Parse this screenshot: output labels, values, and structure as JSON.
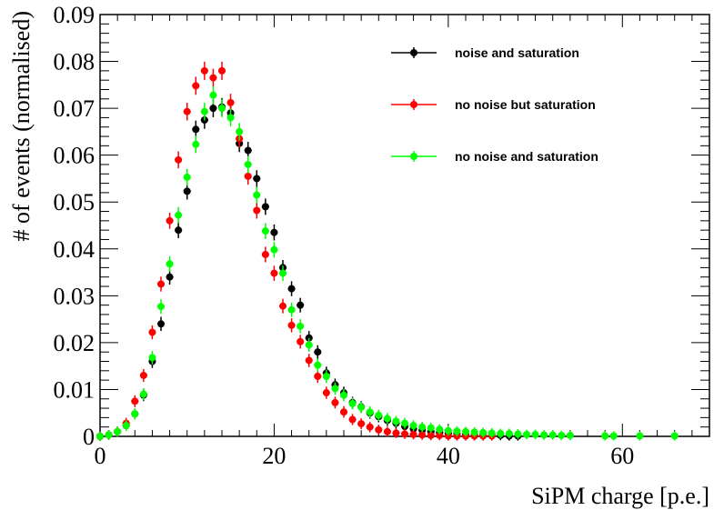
{
  "chart_data": {
    "type": "scatter",
    "xlabel": "SiPM charge [p.e.]",
    "ylabel": "# of events (normalised)",
    "xlim": [
      0,
      70
    ],
    "ylim": [
      0,
      0.09
    ],
    "x_ticks": [
      0,
      20,
      40,
      60
    ],
    "x_tick_labels": [
      "0",
      "20",
      "40",
      "60"
    ],
    "y_ticks": [
      0,
      0.01,
      0.02,
      0.03,
      0.04,
      0.05,
      0.06,
      0.07,
      0.08,
      0.09
    ],
    "y_tick_labels": [
      "0",
      "0.01",
      "0.02",
      "0.03",
      "0.04",
      "0.05",
      "0.06",
      "0.07",
      "0.08",
      "0.09"
    ],
    "grid": false,
    "legend_position": "top-right",
    "series": [
      {
        "name": "noise and saturation",
        "color": "#000000",
        "points": [
          [
            0,
            0.0
          ],
          [
            1,
            0.0003
          ],
          [
            2,
            0.001
          ],
          [
            3,
            0.0023
          ],
          [
            4,
            0.0048
          ],
          [
            5,
            0.0088
          ],
          [
            6,
            0.016
          ],
          [
            7,
            0.024
          ],
          [
            8,
            0.034
          ],
          [
            9,
            0.044
          ],
          [
            10,
            0.0523
          ],
          [
            11,
            0.0655
          ],
          [
            12,
            0.0675
          ],
          [
            13,
            0.07
          ],
          [
            14,
            0.0703
          ],
          [
            15,
            0.069
          ],
          [
            16,
            0.0625
          ],
          [
            17,
            0.061
          ],
          [
            18,
            0.055
          ],
          [
            19,
            0.049
          ],
          [
            20,
            0.0435
          ],
          [
            21,
            0.036
          ],
          [
            22,
            0.0315
          ],
          [
            23,
            0.028
          ],
          [
            24,
            0.021
          ],
          [
            25,
            0.018
          ],
          [
            26,
            0.0135
          ],
          [
            27,
            0.011
          ],
          [
            28,
            0.0093
          ],
          [
            29,
            0.0072
          ],
          [
            30,
            0.0063
          ],
          [
            31,
            0.005
          ],
          [
            32,
            0.0042
          ],
          [
            33,
            0.0034
          ],
          [
            34,
            0.0028
          ],
          [
            35,
            0.0021
          ],
          [
            36,
            0.0016
          ],
          [
            37,
            0.0013
          ],
          [
            38,
            0.001
          ],
          [
            39,
            0.0008
          ],
          [
            40,
            0.0006
          ],
          [
            41,
            0.0005
          ],
          [
            42,
            0.0004
          ],
          [
            43,
            0.0003
          ],
          [
            44,
            0.0003
          ],
          [
            45,
            0.0002
          ],
          [
            46,
            0.0002
          ],
          [
            47,
            0.0001
          ],
          [
            48,
            0.0001
          ]
        ]
      },
      {
        "name": "no noise but saturation",
        "color": "#ff0000",
        "points": [
          [
            0,
            0.0
          ],
          [
            1,
            0.0003
          ],
          [
            2,
            0.001
          ],
          [
            3,
            0.0028
          ],
          [
            4,
            0.0075
          ],
          [
            5,
            0.013
          ],
          [
            6,
            0.0222
          ],
          [
            7,
            0.0325
          ],
          [
            8,
            0.046
          ],
          [
            9,
            0.059
          ],
          [
            10,
            0.0693
          ],
          [
            11,
            0.0748
          ],
          [
            12,
            0.078
          ],
          [
            13,
            0.0765
          ],
          [
            14,
            0.078
          ],
          [
            15,
            0.0712
          ],
          [
            16,
            0.0635
          ],
          [
            17,
            0.0555
          ],
          [
            18,
            0.0482
          ],
          [
            19,
            0.0388
          ],
          [
            20,
            0.0348
          ],
          [
            21,
            0.0278
          ],
          [
            22,
            0.0237
          ],
          [
            23,
            0.0202
          ],
          [
            24,
            0.0162
          ],
          [
            25,
            0.0128
          ],
          [
            26,
            0.0093
          ],
          [
            27,
            0.0072
          ],
          [
            28,
            0.0052
          ],
          [
            29,
            0.0036
          ],
          [
            30,
            0.0027
          ],
          [
            31,
            0.002
          ],
          [
            32,
            0.0014
          ],
          [
            33,
            0.001
          ],
          [
            34,
            0.0007
          ],
          [
            35,
            0.0005
          ],
          [
            36,
            0.0004
          ],
          [
            37,
            0.0003
          ],
          [
            38,
            0.0002
          ],
          [
            39,
            0.0002
          ],
          [
            40,
            0.0001
          ],
          [
            41,
            0.0001
          ],
          [
            42,
            0.0001
          ],
          [
            43,
            0.0001
          ],
          [
            44,
            0.0001
          ],
          [
            45,
            0.0001
          ]
        ]
      },
      {
        "name": "no noise and saturation",
        "color": "#00ff00",
        "points": [
          [
            0,
            0.0
          ],
          [
            1,
            0.0003
          ],
          [
            2,
            0.001
          ],
          [
            3,
            0.0023
          ],
          [
            4,
            0.0048
          ],
          [
            5,
            0.009
          ],
          [
            6,
            0.0168
          ],
          [
            7,
            0.0277
          ],
          [
            8,
            0.0368
          ],
          [
            9,
            0.0472
          ],
          [
            10,
            0.0553
          ],
          [
            11,
            0.0623
          ],
          [
            12,
            0.0693
          ],
          [
            13,
            0.0728
          ],
          [
            14,
            0.07
          ],
          [
            15,
            0.068
          ],
          [
            16,
            0.065
          ],
          [
            17,
            0.058
          ],
          [
            18,
            0.0515
          ],
          [
            19,
            0.0438
          ],
          [
            20,
            0.0398
          ],
          [
            21,
            0.0348
          ],
          [
            22,
            0.027
          ],
          [
            23,
            0.0235
          ],
          [
            24,
            0.0195
          ],
          [
            25,
            0.0152
          ],
          [
            26,
            0.0128
          ],
          [
            27,
            0.0102
          ],
          [
            28,
            0.0088
          ],
          [
            29,
            0.007
          ],
          [
            30,
            0.0062
          ],
          [
            31,
            0.0052
          ],
          [
            32,
            0.0045
          ],
          [
            33,
            0.0038
          ],
          [
            34,
            0.0032
          ],
          [
            35,
            0.0028
          ],
          [
            36,
            0.0023
          ],
          [
            37,
            0.002
          ],
          [
            38,
            0.0018
          ],
          [
            39,
            0.0015
          ],
          [
            40,
            0.0012
          ],
          [
            41,
            0.0011
          ],
          [
            42,
            0.001
          ],
          [
            43,
            0.0009
          ],
          [
            44,
            0.0008
          ],
          [
            45,
            0.0007
          ],
          [
            46,
            0.0006
          ],
          [
            47,
            0.0006
          ],
          [
            48,
            0.0005
          ],
          [
            49,
            0.0004
          ],
          [
            50,
            0.0004
          ],
          [
            51,
            0.0003
          ],
          [
            52,
            0.0003
          ],
          [
            53,
            0.0002
          ],
          [
            54,
            0.0002
          ],
          [
            58,
            0.0001
          ],
          [
            59,
            0.0001
          ],
          [
            62,
            0.0001
          ],
          [
            66,
            0.0001
          ]
        ]
      }
    ]
  }
}
